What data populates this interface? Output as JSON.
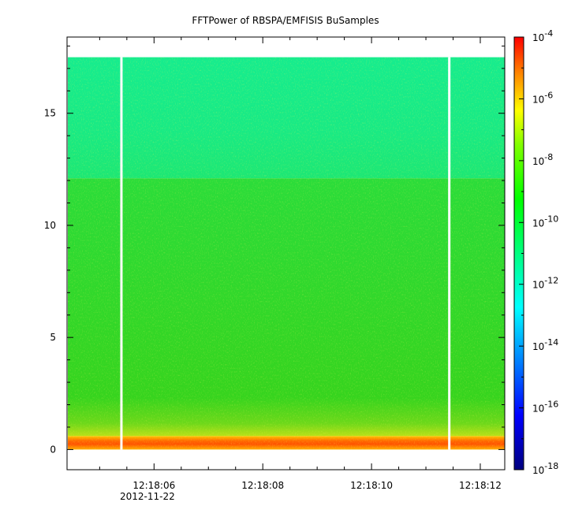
{
  "chart_data": {
    "type": "heatmap",
    "title": "FFTPower of RBSPA/EMFISIS  BuSamples",
    "xlabel": "",
    "ylabel": "",
    "x_tick_labels": [
      "12:18:06",
      "12:18:08",
      "12:18:10",
      "12:18:12"
    ],
    "x_date_label": "2012-11-22",
    "x_range": [
      "12:18:04.40",
      "12:18:12.45"
    ],
    "y_ticks": [
      0,
      5,
      10,
      15
    ],
    "y_range": [
      -0.9,
      18.4
    ],
    "colorbar": {
      "scale": "log",
      "range": [
        1e-18,
        0.0001
      ],
      "tick_bases": [
        "10",
        "10",
        "10",
        "10",
        "10",
        "10",
        "10",
        "10"
      ],
      "tick_exponents": [
        "-4",
        "-6",
        "-8",
        "-10",
        "-12",
        "-14",
        "-16",
        "-18"
      ],
      "colormap": "rainbow"
    },
    "data_regions": [
      {
        "y_from": 12.1,
        "y_to": 17.5,
        "level": "~1e-12 to 1e-11",
        "color": "#1fe870"
      },
      {
        "y_from": 0.6,
        "y_to": 12.1,
        "level": "~1e-10",
        "color": "#30d81c"
      },
      {
        "y_from": 0.0,
        "y_to": 0.6,
        "level": "~1e-8 to 1e-6",
        "color": "#ff7a00"
      }
    ],
    "data_gaps_x": [
      "12:18:05.40",
      "12:18:11.43"
    ],
    "grid": false
  }
}
